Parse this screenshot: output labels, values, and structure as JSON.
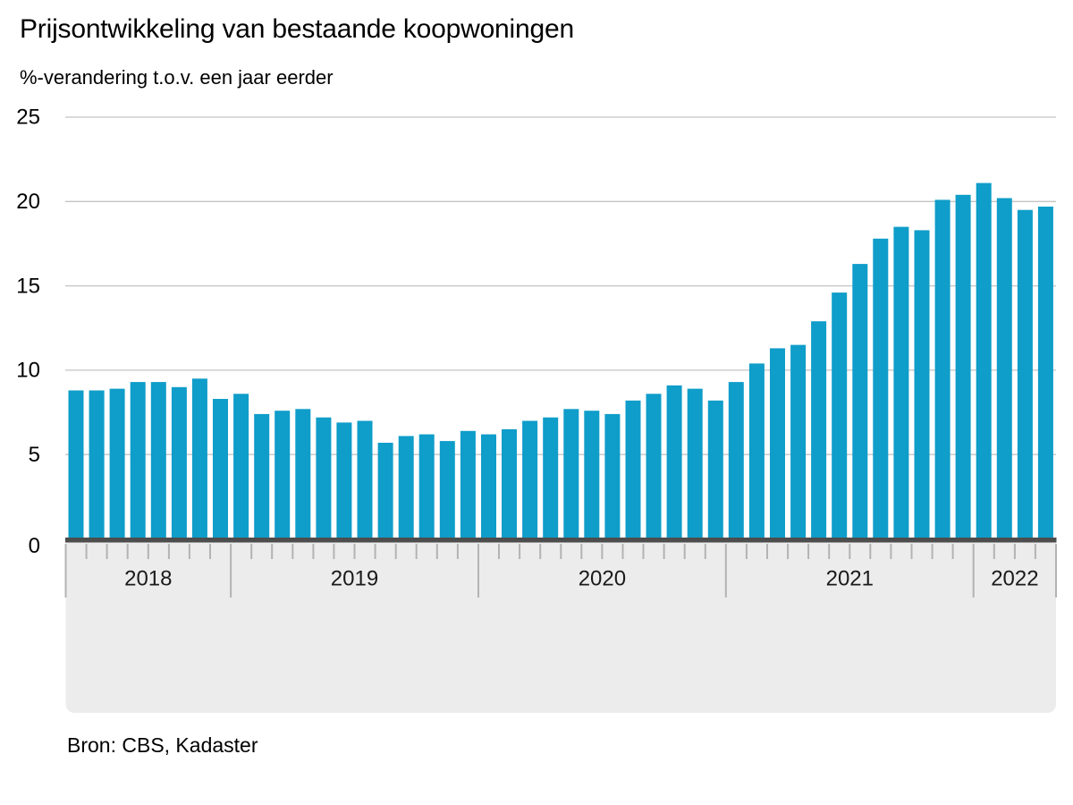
{
  "page": {
    "title": "Prijsontwikkeling van bestaande koopwoningen",
    "subtitle": "%-verandering t.o.v. een jaar eerder",
    "source": "Bron: CBS, Kadaster",
    "logo": "cbs-logo"
  },
  "chart_data": {
    "type": "bar",
    "title": "Prijsontwikkeling van bestaande koopwoningen",
    "subtitle": "%-verandering t.o.v. een jaar eerder",
    "xlabel": "",
    "ylabel": "%-verandering t.o.v. een jaar eerder",
    "ylim": [
      0,
      25
    ],
    "yticks": [
      0,
      5,
      10,
      15,
      20,
      25
    ],
    "grid": true,
    "legend": false,
    "bar_color": "#0f9dc9",
    "source": "Bron: CBS, Kadaster",
    "year_groups": [
      {
        "label": "2018",
        "months": 8
      },
      {
        "label": "2019",
        "months": 12
      },
      {
        "label": "2020",
        "months": 12
      },
      {
        "label": "2021",
        "months": 12
      },
      {
        "label": "2022",
        "months": 4
      }
    ],
    "x": [
      "2018-05",
      "2018-06",
      "2018-07",
      "2018-08",
      "2018-09",
      "2018-10",
      "2018-11",
      "2018-12",
      "2019-01",
      "2019-02",
      "2019-03",
      "2019-04",
      "2019-05",
      "2019-06",
      "2019-07",
      "2019-08",
      "2019-09",
      "2019-10",
      "2019-11",
      "2019-12",
      "2020-01",
      "2020-02",
      "2020-03",
      "2020-04",
      "2020-05",
      "2020-06",
      "2020-07",
      "2020-08",
      "2020-09",
      "2020-10",
      "2020-11",
      "2020-12",
      "2021-01",
      "2021-02",
      "2021-03",
      "2021-04",
      "2021-05",
      "2021-06",
      "2021-07",
      "2021-08",
      "2021-09",
      "2021-10",
      "2021-11",
      "2021-12",
      "2022-01",
      "2022-02",
      "2022-03",
      "2022-04"
    ],
    "values": [
      8.8,
      8.8,
      8.9,
      9.3,
      9.3,
      9.0,
      9.5,
      8.3,
      8.6,
      7.4,
      7.6,
      7.7,
      7.2,
      6.9,
      7.0,
      5.7,
      6.1,
      6.2,
      5.8,
      6.4,
      6.2,
      6.5,
      7.0,
      7.2,
      7.7,
      7.6,
      7.4,
      8.2,
      8.6,
      9.1,
      8.9,
      8.2,
      9.3,
      10.4,
      11.3,
      11.5,
      12.9,
      14.6,
      16.3,
      17.8,
      18.5,
      18.3,
      20.1,
      20.4,
      21.1,
      20.2,
      19.5,
      19.7
    ]
  }
}
